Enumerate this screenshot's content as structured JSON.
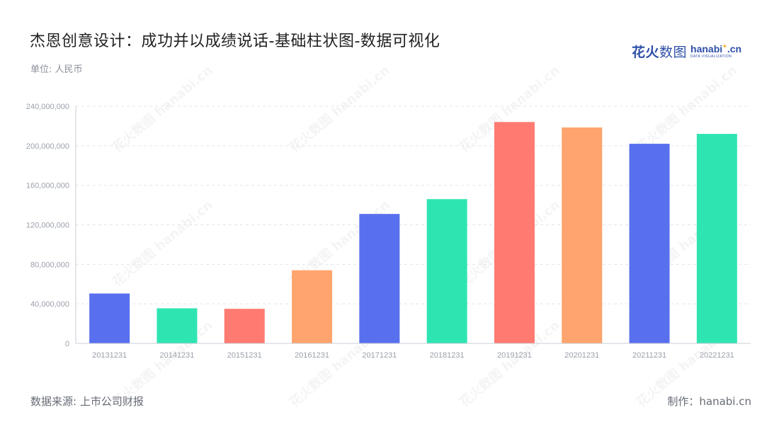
{
  "title": "杰恩创意设计：成功并以成绩说话-基础柱状图-数据可视化",
  "unit": "单位: 人民币",
  "logo": {
    "cn_bold": "花火",
    "cn_thin": "数图",
    "en_main": "hanabi",
    "en_tail": ".cn",
    "en_sub": "DATA VISUALIZATION"
  },
  "footer": {
    "source": "数据来源: 上市公司财报",
    "credit": "制作：hanabi.cn"
  },
  "watermark_text": "花火数图 hanabi.cn",
  "colors": {
    "blue": "#5970ee",
    "green": "#2ee5b1",
    "red": "#ff7a70",
    "orange": "#ffa46e",
    "grid": "#e3e5ea",
    "axis": "#c8ccd4",
    "tick": "#9aa0aa"
  },
  "chart_data": {
    "type": "bar",
    "categories": [
      "20131231",
      "20141231",
      "20151231",
      "20161231",
      "20171231",
      "20181231",
      "20191231",
      "20201231",
      "20211231",
      "20221231"
    ],
    "values": [
      50500000,
      35500000,
      35000000,
      74000000,
      131000000,
      146000000,
      224000000,
      218500000,
      202000000,
      212000000
    ],
    "bar_colors": [
      "#5970ee",
      "#2ee5b1",
      "#ff7a70",
      "#ffa46e",
      "#5970ee",
      "#2ee5b1",
      "#ff7a70",
      "#ffa46e",
      "#5970ee",
      "#2ee5b1"
    ],
    "yticks": [
      0,
      40000000,
      80000000,
      120000000,
      160000000,
      200000000,
      240000000
    ],
    "ytick_labels": [
      "0",
      "40,000,000",
      "80,000,000",
      "120,000,000",
      "160,000,000",
      "200,000,000",
      "240,000,000"
    ],
    "ylim": [
      0,
      240000000
    ],
    "grid": true,
    "legend": "none"
  }
}
